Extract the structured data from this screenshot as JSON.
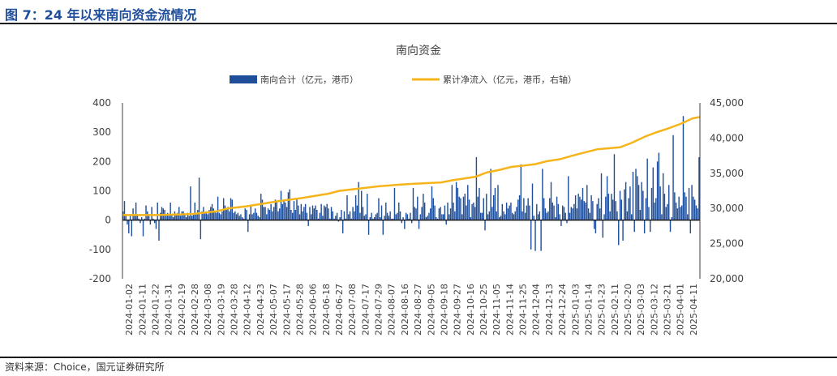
{
  "figure": {
    "title": "图 7：24 年以来南向资金流情况",
    "source": "资料来源：Choice，国元证券研究所"
  },
  "colors": {
    "bar": "#1f4e9a",
    "line": "#f5b41a",
    "title": "#1f4e9a",
    "axis_text": "#404040"
  },
  "chart_data": {
    "type": "bar",
    "title": "南向资金",
    "legend_position": "top-center",
    "grid": false,
    "y_left": {
      "min": -200,
      "max": 400,
      "ticks": [
        -200,
        -100,
        0,
        100,
        200,
        300,
        400
      ],
      "tick_labels": [
        "-200",
        "-100",
        "0",
        "100",
        "200",
        "300",
        "400"
      ]
    },
    "y_right": {
      "min": 20000,
      "max": 45000,
      "ticks": [
        20000,
        25000,
        30000,
        35000,
        40000,
        45000
      ],
      "tick_labels": [
        "20,000",
        "25,000",
        "30,000",
        "35,000",
        "40,000",
        "45,000"
      ]
    },
    "x_date_range": [
      "2024-01-02",
      "2025-04-17"
    ],
    "x_tick_labels": [
      "2024-01-02",
      "2024-01-11",
      "2024-01-22",
      "2024-01-31",
      "2024-02-19",
      "2024-02-28",
      "2024-03-08",
      "2024-03-19",
      "2024-03-28",
      "2024-04-12",
      "2024-04-23",
      "2024-05-07",
      "2024-05-17",
      "2024-05-28",
      "2024-06-06",
      "2024-06-18",
      "2024-06-27",
      "2024-07-08",
      "2024-07-17",
      "2024-07-29",
      "2024-08-07",
      "2024-08-16",
      "2024-08-27",
      "2024-09-05",
      "2024-09-18",
      "2024-09-27",
      "2024-10-16",
      "2024-10-25",
      "2024-11-05",
      "2024-11-14",
      "2024-11-25",
      "2024-12-04",
      "2024-12-13",
      "2024-12-24",
      "2025-01-03",
      "2025-01-14",
      "2025-01-23",
      "2025-02-11",
      "2025-02-20",
      "2025-03-03",
      "2025-03-12",
      "2025-03-21",
      "2025-04-01",
      "2025-04-11"
    ],
    "series": [
      {
        "name": "南向合计（亿元，港币）",
        "type": "bar",
        "axis": "left",
        "values": [
          30,
          65,
          20,
          -15,
          -45,
          15,
          -55,
          40,
          15,
          60,
          20,
          5,
          -10,
          10,
          -55,
          5,
          50,
          30,
          20,
          -15,
          45,
          5,
          -10,
          -30,
          60,
          -70,
          25,
          45,
          40,
          35,
          20,
          25,
          15,
          60,
          20,
          10,
          30,
          20,
          25,
          45,
          15,
          30,
          30,
          20,
          10,
          25,
          15,
          115,
          15,
          20,
          60,
          25,
          35,
          145,
          -65,
          30,
          45,
          25,
          30,
          20,
          35,
          45,
          55,
          40,
          30,
          25,
          80,
          25,
          20,
          30,
          75,
          50,
          35,
          45,
          30,
          75,
          70,
          25,
          30,
          20,
          25,
          15,
          20,
          10,
          5,
          40,
          35,
          -40,
          20,
          50,
          20,
          25,
          40,
          25,
          15,
          10,
          90,
          70,
          45,
          45,
          20,
          40,
          35,
          55,
          30,
          45,
          70,
          65,
          30,
          40,
          100,
          55,
          65,
          60,
          45,
          95,
          105,
          35,
          25,
          65,
          35,
          75,
          50,
          20,
          55,
          30,
          45,
          55,
          25,
          -20,
          45,
          20,
          50,
          40,
          50,
          35,
          5,
          25,
          55,
          15,
          50,
          45,
          55,
          40,
          5,
          45,
          30,
          5,
          15,
          25,
          -5,
          10,
          35,
          -45,
          30,
          5,
          85,
          20,
          30,
          5,
          45,
          30,
          85,
          50,
          130,
          25,
          100,
          45,
          15,
          20,
          90,
          -50,
          10,
          25,
          5,
          10,
          20,
          25,
          75,
          10,
          50,
          -50,
          15,
          60,
          25,
          15,
          30,
          5,
          5,
          110,
          20,
          25,
          60,
          30,
          -10,
          10,
          -30,
          25,
          20,
          5,
          25,
          -10,
          110,
          45,
          40,
          80,
          -30,
          20,
          45,
          90,
          60,
          10,
          15,
          25,
          40,
          115,
          75,
          50,
          10,
          5,
          40,
          45,
          20,
          20,
          50,
          -15,
          60,
          20,
          40,
          120,
          60,
          30,
          130,
          110,
          80,
          75,
          20,
          80,
          90,
          50,
          120,
          70,
          10,
          55,
          60,
          45,
          215,
          80,
          110,
          25,
          25,
          75,
          -35,
          90,
          20,
          30,
          175,
          45,
          85,
          110,
          30,
          120,
          10,
          15,
          55,
          30,
          20,
          60,
          40,
          50,
          60,
          25,
          20,
          30,
          45,
          70,
          85,
          190,
          30,
          75,
          25,
          50,
          75,
          50,
          -100,
          125,
          15,
          -105,
          55,
          20,
          30,
          -105,
          175,
          75,
          40,
          25,
          30,
          75,
          130,
          60,
          50,
          10,
          80,
          55,
          20,
          -20,
          50,
          45,
          25,
          -10,
          150,
          25,
          45,
          40,
          55,
          85,
          40,
          90,
          80,
          70,
          110,
          65,
          60,
          120,
          40,
          25,
          85,
          65,
          -30,
          -45,
          55,
          75,
          40,
          160,
          -60,
          20,
          80,
          150,
          90,
          30,
          90,
          70,
          225,
          65,
          30,
          -85,
          100,
          70,
          -70,
          105,
          130,
          30,
          75,
          115,
          20,
          165,
          -40,
          175,
          150,
          120,
          35,
          130,
          100,
          -45,
          75,
          210,
          45,
          -40,
          110,
          180,
          60,
          75,
          200,
          230,
          115,
          20,
          160,
          90,
          45,
          55,
          120,
          -40,
          10,
          290,
          95,
          60,
          40,
          80,
          45,
          50,
          355,
          95,
          80,
          20,
          110,
          -45,
          120,
          80,
          70,
          50,
          40,
          215
        ]
      },
      {
        "name": "累计净流入（亿元，港币，右轴）",
        "type": "line",
        "axis": "right",
        "points": [
          [
            "2024-01-02",
            29050
          ],
          [
            "2024-01-31",
            29050
          ],
          [
            "2024-02-28",
            29200
          ],
          [
            "2024-03-19",
            29600
          ],
          [
            "2024-03-28",
            30000
          ],
          [
            "2024-04-12",
            30300
          ],
          [
            "2024-04-23",
            30600
          ],
          [
            "2024-05-07",
            31000
          ],
          [
            "2024-05-28",
            31500
          ],
          [
            "2024-06-18",
            32100
          ],
          [
            "2024-06-27",
            32500
          ],
          [
            "2024-07-17",
            32900
          ],
          [
            "2024-07-29",
            33150
          ],
          [
            "2024-08-16",
            33400
          ],
          [
            "2024-08-27",
            33500
          ],
          [
            "2024-09-18",
            33700
          ],
          [
            "2024-09-27",
            34000
          ],
          [
            "2024-10-16",
            34500
          ],
          [
            "2024-10-25",
            35100
          ],
          [
            "2024-11-05",
            35500
          ],
          [
            "2024-11-14",
            35900
          ],
          [
            "2024-11-25",
            36100
          ],
          [
            "2024-12-04",
            36300
          ],
          [
            "2024-12-13",
            36700
          ],
          [
            "2024-12-24",
            37000
          ],
          [
            "2025-01-03",
            37500
          ],
          [
            "2025-01-14",
            38000
          ],
          [
            "2025-01-23",
            38400
          ],
          [
            "2025-02-11",
            38700
          ],
          [
            "2025-02-20",
            39300
          ],
          [
            "2025-03-03",
            40200
          ],
          [
            "2025-03-12",
            40800
          ],
          [
            "2025-03-21",
            41300
          ],
          [
            "2025-04-01",
            42000
          ],
          [
            "2025-04-11",
            42800
          ],
          [
            "2025-04-17",
            43000
          ]
        ]
      }
    ]
  }
}
